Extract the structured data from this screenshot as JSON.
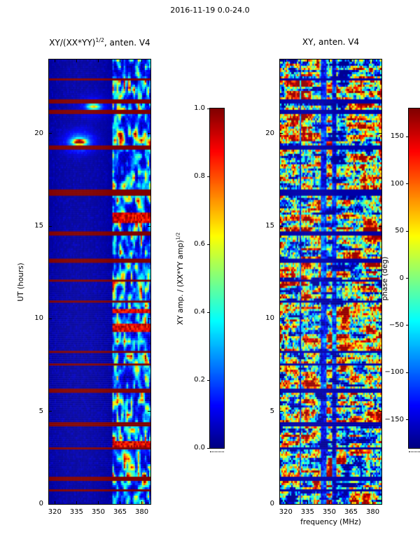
{
  "figure_title": "2016-11-19 0.0-24.0",
  "chart_data": [
    {
      "type": "heatmap",
      "panel": "left",
      "title_prefix": "XY/(XX*YY)",
      "title_sup": "1/2",
      "title_suffix": ", anten. V4",
      "xlabel": "",
      "ylabel": "UT (hours)",
      "x_tick_labels": [
        "320",
        "335",
        "350",
        "365",
        "380"
      ],
      "x_tick_values": [
        320,
        335,
        350,
        365,
        380
      ],
      "y_tick_labels": [
        "0",
        "5",
        "10",
        "15",
        "20"
      ],
      "y_tick_values": [
        0,
        5,
        10,
        15,
        20
      ],
      "x_range": [
        316,
        386
      ],
      "y_range": [
        0,
        24
      ],
      "colormap": "jet",
      "colorbar": {
        "label_prefix": "XY amp. / (XX*YY amp)",
        "label_sup": "1/2",
        "tick_labels": [
          "1.0",
          "0.8",
          "0.6",
          "0.4",
          "0.2",
          "0.0"
        ],
        "tick_values": [
          1.0,
          0.8,
          0.6,
          0.4,
          0.2,
          0.0
        ],
        "range": [
          0.0,
          1.0
        ]
      },
      "content": {
        "seed": 42,
        "background_level": 0.04,
        "rfi_band_start_mhz": 360,
        "flagged_rows_ut": [
          [
            22.9,
            22.98
          ],
          [
            21.6,
            21.82
          ],
          [
            21.05,
            21.25
          ],
          [
            19.1,
            19.35
          ],
          [
            16.6,
            16.95
          ],
          [
            14.45,
            14.75
          ],
          [
            13.05,
            13.25
          ],
          [
            11.95,
            12.12
          ],
          [
            10.9,
            11.0
          ],
          [
            8.1,
            8.3
          ],
          [
            7.5,
            7.6
          ],
          [
            6.0,
            6.2
          ],
          [
            4.15,
            4.4
          ],
          [
            2.95,
            3.05
          ],
          [
            1.3,
            1.5
          ],
          [
            0.7,
            0.78
          ]
        ],
        "strong_band_rows_ut": [
          [
            15.15,
            15.75
          ],
          [
            10.3,
            10.5
          ],
          [
            9.3,
            9.7
          ],
          [
            3.05,
            3.35
          ]
        ],
        "point_sources": [
          {
            "ut": 19.55,
            "freq_frac": 0.3,
            "amplitude": 0.95
          },
          {
            "ut": 21.45,
            "freq_frac": 0.44,
            "amplitude": 0.5
          }
        ]
      }
    },
    {
      "type": "heatmap",
      "panel": "right",
      "title": "XY, anten. V4",
      "xlabel": "frequency (MHz)",
      "ylabel": "",
      "x_tick_labels": [
        "320",
        "335",
        "350",
        "365",
        "380"
      ],
      "x_tick_values": [
        320,
        335,
        350,
        365,
        380
      ],
      "y_tick_labels": [
        "0",
        "5",
        "10",
        "15",
        "20"
      ],
      "y_tick_values": [
        0,
        5,
        10,
        15,
        20
      ],
      "x_range": [
        316,
        386
      ],
      "y_range": [
        0,
        24
      ],
      "colormap": "jet",
      "colorbar": {
        "label": "phase (deg)",
        "tick_labels": [
          "150",
          "100",
          "50",
          "0",
          "−50",
          "−100",
          "−150"
        ],
        "tick_values": [
          150,
          100,
          50,
          0,
          -50,
          -100,
          -150
        ],
        "range": [
          -180,
          180
        ]
      },
      "content": {
        "seed": 7,
        "flagged_rows_ut": [
          [
            22.9,
            22.98
          ],
          [
            21.6,
            21.82
          ],
          [
            21.05,
            21.25
          ],
          [
            19.1,
            19.35
          ],
          [
            16.6,
            16.95
          ],
          [
            14.45,
            14.75
          ],
          [
            13.05,
            13.25
          ],
          [
            11.95,
            12.12
          ],
          [
            10.9,
            11.0
          ],
          [
            8.1,
            8.3
          ],
          [
            7.5,
            7.6
          ],
          [
            6.0,
            6.2
          ],
          [
            4.15,
            4.4
          ],
          [
            2.95,
            3.05
          ],
          [
            1.3,
            1.5
          ],
          [
            0.7,
            0.78
          ]
        ],
        "black_rows_ut": [
          [
            22.7,
            22.78
          ],
          [
            22.05,
            22.12
          ]
        ],
        "dark_columns_freq_frac": [
          [
            0.4,
            0.46
          ],
          [
            0.52,
            0.56
          ],
          [
            0.19,
            0.215
          ]
        ]
      }
    }
  ]
}
